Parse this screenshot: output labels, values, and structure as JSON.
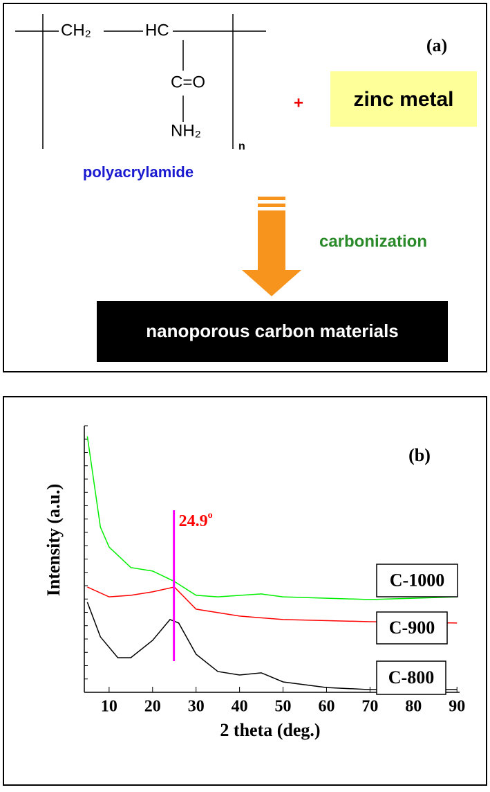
{
  "scheme": {
    "label": "(a)",
    "monomer": {
      "left": "CH₂",
      "right": "HC",
      "carbonyl": "C=O",
      "amide": "NH₂",
      "repeat": "n"
    },
    "polymer": "polyacrylamide",
    "plus": "+",
    "additive": "zinc metal",
    "process": "carbonization",
    "product": "nanoporous carbon materials"
  },
  "chart_data": {
    "type": "line",
    "label": "(b)",
    "x_label": "2 theta (deg.)",
    "y_label": "Intensity (a.u.)",
    "xlim": [
      4.3,
      90.6
    ],
    "xticks": [
      10,
      20,
      30,
      40,
      50,
      60,
      70,
      80,
      90
    ],
    "ylim": [
      0,
      100
    ],
    "yticks": [
      0,
      5,
      10,
      15,
      20,
      25,
      30,
      35,
      40,
      45,
      50,
      55,
      60,
      65,
      70,
      75,
      80,
      85,
      90,
      95,
      100
    ],
    "annotation": {
      "text": "24.9",
      "sup": "o",
      "x": 24.9,
      "color": "#ff0000",
      "line_color": "#ff00ff"
    },
    "series": [
      {
        "name": "C-1000",
        "color": "#00ee00",
        "x": [
          5,
          8,
          10,
          15,
          20,
          25,
          30,
          35,
          45,
          50,
          70,
          90
        ],
        "values": [
          96,
          62,
          54.5,
          46.8,
          45.5,
          41.6,
          36.4,
          35.8,
          36.9,
          35.8,
          34.8,
          35.8
        ]
      },
      {
        "name": "C-900",
        "color": "#ff0000",
        "x": [
          5,
          10,
          15,
          20,
          25,
          30,
          40,
          50,
          70,
          90
        ],
        "values": [
          39.5,
          35.8,
          36.4,
          37.7,
          39.5,
          31.2,
          28.6,
          27.3,
          26.5,
          26
        ]
      },
      {
        "name": "C-800",
        "color": "#000000",
        "x": [
          5,
          8,
          12,
          15,
          20,
          24,
          26,
          30,
          35,
          40,
          45,
          50,
          60,
          70,
          90
        ],
        "values": [
          33.8,
          20.8,
          13,
          13,
          19.5,
          27.3,
          26,
          14.3,
          7.8,
          6.5,
          7.3,
          3.9,
          1.8,
          1,
          1
        ]
      }
    ]
  }
}
